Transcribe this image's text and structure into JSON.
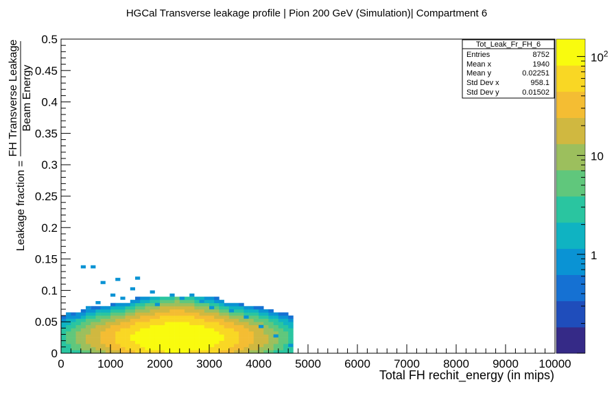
{
  "chart_data": {
    "type": "heatmap",
    "title": "HGCal Transverse leakage profile | Pion 200 GeV (Simulation)| Compartment 6",
    "xlabel": "Total FH rechit_energy (in mips)",
    "ylabel": {
      "prefix": "Leakage fraction = ",
      "numerator": "FH Transverse Leakage",
      "denominator": "Beam Energy"
    },
    "xlim": [
      0,
      10000
    ],
    "ylim": [
      0,
      0.5
    ],
    "x_ticks": [
      "0",
      "1000",
      "2000",
      "3000",
      "4000",
      "5000",
      "6000",
      "7000",
      "8000",
      "9000",
      "10000"
    ],
    "y_ticks": [
      "0",
      "0.05",
      "0.1",
      "0.15",
      "0.2",
      "0.25",
      "0.3",
      "0.35",
      "0.4",
      "0.45",
      "0.5"
    ],
    "z_scale": "log",
    "z_range": [
      0.1,
      150
    ],
    "z_ticks": [
      {
        "base": "1",
        "exp": ""
      },
      {
        "base": "10",
        "exp": ""
      },
      {
        "base": "10",
        "exp": "2"
      }
    ],
    "palette": [
      "#352a87",
      "#1f4dbb",
      "#1571d3",
      "#0a93d4",
      "#0fb3c2",
      "#2ac5a0",
      "#60c77c",
      "#9cbf5d",
      "#d0b840",
      "#f4bd33",
      "#f9d724",
      "#f9fb0e"
    ],
    "bin_size": [
      100,
      0.005
    ],
    "stats": {
      "name": "Tot_Leak_Fr_FH_6",
      "rows": [
        {
          "label": "Entries",
          "value": "8752"
        },
        {
          "label": "Mean x",
          "value": "1940"
        },
        {
          "label": "Mean y",
          "value": "0.02251"
        },
        {
          "label": "Std Dev x",
          "value": "958.1"
        },
        {
          "label": "Std Dev y",
          "value": "0.01502"
        }
      ]
    },
    "sparse_bins": [
      [
        400,
        0.135,
        1
      ],
      [
        600,
        0.135,
        1
      ],
      [
        800,
        0.11,
        1
      ],
      [
        1100,
        0.115,
        1
      ],
      [
        1500,
        0.117,
        1
      ],
      [
        1400,
        0.1,
        1
      ],
      [
        1000,
        0.09,
        1
      ],
      [
        1800,
        0.095,
        1
      ],
      [
        2200,
        0.09,
        1
      ],
      [
        2600,
        0.09,
        1
      ],
      [
        2400,
        0.085,
        1
      ],
      [
        2800,
        0.08,
        1
      ],
      [
        1200,
        0.085,
        1
      ],
      [
        700,
        0.078,
        1
      ],
      [
        500,
        0.07,
        1
      ],
      [
        100,
        0.06,
        1
      ],
      [
        300,
        0.055,
        1
      ],
      [
        1900,
        0.075,
        1
      ],
      [
        3000,
        0.07,
        1
      ],
      [
        3400,
        0.065,
        1
      ],
      [
        3700,
        0.055,
        1
      ],
      [
        4000,
        0.04,
        1
      ],
      [
        4300,
        0.025,
        1
      ],
      [
        4600,
        0.01,
        1
      ]
    ]
  }
}
